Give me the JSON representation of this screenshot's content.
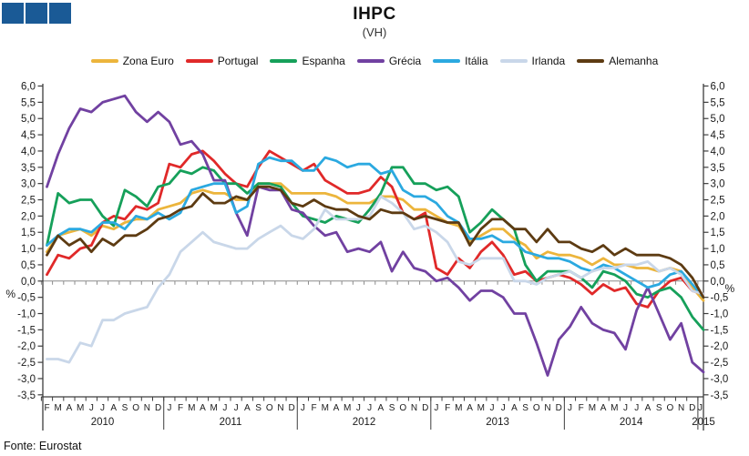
{
  "page": {
    "source": "Fonte: Eurostat"
  },
  "logo": {
    "color": "#1A5A96",
    "squares": 3
  },
  "chart_data": {
    "type": "line",
    "title": "IHPC",
    "subtitle": "(VH)",
    "unit": "%",
    "legend_position": "top",
    "grid": false,
    "ylim": [
      -3.5,
      6.0
    ],
    "y_ticks": [
      {
        "value": 6.0,
        "label": "6,0"
      },
      {
        "value": 5.5,
        "label": "5,5"
      },
      {
        "value": 5.0,
        "label": "5,0"
      },
      {
        "value": 4.5,
        "label": "4,5"
      },
      {
        "value": 4.0,
        "label": "4,0"
      },
      {
        "value": 3.5,
        "label": "3,5"
      },
      {
        "value": 3.0,
        "label": "3,0"
      },
      {
        "value": 2.5,
        "label": "2,5"
      },
      {
        "value": 2.0,
        "label": "2,0"
      },
      {
        "value": 1.5,
        "label": "1,5"
      },
      {
        "value": 1.0,
        "label": "1,0"
      },
      {
        "value": 0.5,
        "label": "0,5"
      },
      {
        "value": 0.0,
        "label": "0,0"
      },
      {
        "value": -0.5,
        "label": "-0,5"
      },
      {
        "value": -1.0,
        "label": "-1,0"
      },
      {
        "value": -1.5,
        "label": "-1,5"
      },
      {
        "value": -2.0,
        "label": "-2,0"
      },
      {
        "value": -2.5,
        "label": "-2,5"
      },
      {
        "value": -3.0,
        "label": "-3,0"
      },
      {
        "value": -3.5,
        "label": "-3,5"
      }
    ],
    "x_months": [
      "F",
      "M",
      "A",
      "M",
      "J",
      "J",
      "A",
      "S",
      "O",
      "N",
      "D",
      "J",
      "F",
      "M",
      "A",
      "M",
      "J",
      "J",
      "A",
      "S",
      "O",
      "N",
      "D",
      "J",
      "F",
      "M",
      "A",
      "M",
      "J",
      "J",
      "A",
      "S",
      "O",
      "N",
      "D",
      "J",
      "F",
      "M",
      "A",
      "M",
      "J",
      "J",
      "A",
      "S",
      "O",
      "N",
      "D",
      "J",
      "F",
      "M",
      "A",
      "M",
      "J",
      "J",
      "A",
      "S",
      "O",
      "N",
      "D",
      "J"
    ],
    "years": [
      {
        "label": "2010",
        "from": 0,
        "to": 10
      },
      {
        "label": "2011",
        "from": 11,
        "to": 22
      },
      {
        "label": "2012",
        "from": 23,
        "to": 34
      },
      {
        "label": "2013",
        "from": 35,
        "to": 46
      },
      {
        "label": "2014",
        "from": 47,
        "to": 58
      },
      {
        "label": "2015",
        "from": 59,
        "to": 59
      }
    ],
    "series": [
      {
        "name": "Zona Euro",
        "color": "#ECB53C",
        "values": [
          0.9,
          1.4,
          1.5,
          1.6,
          1.4,
          1.7,
          1.6,
          1.8,
          1.9,
          1.9,
          2.2,
          2.3,
          2.4,
          2.7,
          2.8,
          2.7,
          2.7,
          2.5,
          2.5,
          3.0,
          3.0,
          3.0,
          2.7,
          2.7,
          2.7,
          2.7,
          2.6,
          2.4,
          2.4,
          2.4,
          2.6,
          2.6,
          2.5,
          2.2,
          2.2,
          2.0,
          1.8,
          1.7,
          1.2,
          1.4,
          1.6,
          1.6,
          1.3,
          1.1,
          0.7,
          0.9,
          0.8,
          0.8,
          0.7,
          0.5,
          0.7,
          0.5,
          0.5,
          0.4,
          0.4,
          0.3,
          0.4,
          0.3,
          -0.2,
          -0.6
        ]
      },
      {
        "name": "Portugal",
        "color": "#E02929",
        "values": [
          0.2,
          0.8,
          0.7,
          1.0,
          1.1,
          1.8,
          2.0,
          1.9,
          2.3,
          2.2,
          2.4,
          3.6,
          3.5,
          3.9,
          4.0,
          3.7,
          3.3,
          3.0,
          2.9,
          3.5,
          4.0,
          3.8,
          3.6,
          3.4,
          3.6,
          3.1,
          2.9,
          2.7,
          2.7,
          2.8,
          3.2,
          2.9,
          2.1,
          1.9,
          2.1,
          0.4,
          0.2,
          0.7,
          0.4,
          0.9,
          1.2,
          0.8,
          0.2,
          0.3,
          0.0,
          0.1,
          0.2,
          0.1,
          -0.1,
          -0.4,
          -0.1,
          -0.3,
          -0.2,
          -0.7,
          -0.8,
          -0.3,
          0.0,
          0.1,
          -0.3,
          -0.4
        ]
      },
      {
        "name": "Espanha",
        "color": "#16A05A",
        "values": [
          1.1,
          2.7,
          2.4,
          2.5,
          2.5,
          2.0,
          1.7,
          2.8,
          2.6,
          2.3,
          2.9,
          3.0,
          3.4,
          3.3,
          3.5,
          3.4,
          3.0,
          3.0,
          2.7,
          3.0,
          3.0,
          2.9,
          2.4,
          2.0,
          1.9,
          1.8,
          2.0,
          1.9,
          1.8,
          2.2,
          2.7,
          3.5,
          3.5,
          3.0,
          3.0,
          2.8,
          2.9,
          2.6,
          1.5,
          1.8,
          2.2,
          1.9,
          1.6,
          0.5,
          0.0,
          0.3,
          0.3,
          0.3,
          0.1,
          -0.2,
          0.3,
          0.2,
          0.0,
          -0.4,
          -0.5,
          -0.3,
          -0.2,
          -0.5,
          -1.1,
          -1.5
        ]
      },
      {
        "name": "Grécia",
        "color": "#7141A1",
        "values": [
          2.9,
          3.9,
          4.7,
          5.3,
          5.2,
          5.5,
          5.6,
          5.7,
          5.2,
          4.9,
          5.2,
          4.9,
          4.2,
          4.3,
          3.9,
          3.1,
          3.1,
          2.1,
          1.4,
          2.9,
          2.8,
          2.8,
          2.2,
          2.1,
          1.7,
          1.4,
          1.5,
          0.9,
          1.0,
          0.9,
          1.2,
          0.3,
          0.9,
          0.4,
          0.3,
          0.0,
          0.1,
          -0.2,
          -0.6,
          -0.3,
          -0.3,
          -0.5,
          -1.0,
          -1.0,
          -1.9,
          -2.9,
          -1.8,
          -1.4,
          -0.8,
          -1.3,
          -1.5,
          -1.6,
          -2.1,
          -0.9,
          -0.2,
          -1.0,
          -1.8,
          -1.3,
          -2.5,
          -2.8
        ]
      },
      {
        "name": "Itália",
        "color": "#2BA9E0",
        "values": [
          1.1,
          1.4,
          1.6,
          1.6,
          1.5,
          1.8,
          1.8,
          1.6,
          2.0,
          1.9,
          2.1,
          1.9,
          2.1,
          2.8,
          2.9,
          3.0,
          3.0,
          2.1,
          2.3,
          3.6,
          3.8,
          3.7,
          3.7,
          3.4,
          3.4,
          3.8,
          3.7,
          3.5,
          3.6,
          3.6,
          3.3,
          3.4,
          2.8,
          2.6,
          2.6,
          2.4,
          2.0,
          1.8,
          1.3,
          1.3,
          1.4,
          1.2,
          1.2,
          0.9,
          0.8,
          0.7,
          0.7,
          0.6,
          0.4,
          0.3,
          0.5,
          0.4,
          0.2,
          0.0,
          -0.2,
          -0.1,
          0.2,
          0.3,
          -0.1,
          -0.5
        ]
      },
      {
        "name": "Irlanda",
        "color": "#C9D7E9",
        "values": [
          -2.4,
          -2.4,
          -2.5,
          -1.9,
          -2.0,
          -1.2,
          -1.2,
          -1.0,
          -0.9,
          -0.8,
          -0.2,
          0.2,
          0.9,
          1.2,
          1.5,
          1.2,
          1.1,
          1.0,
          1.0,
          1.3,
          1.5,
          1.7,
          1.4,
          1.3,
          1.6,
          2.2,
          1.9,
          1.9,
          1.9,
          2.0,
          2.6,
          2.4,
          2.1,
          1.6,
          1.7,
          1.5,
          1.2,
          0.6,
          0.5,
          0.7,
          0.7,
          0.7,
          0.0,
          0.0,
          -0.1,
          0.1,
          0.2,
          0.3,
          0.1,
          0.3,
          0.4,
          0.4,
          0.5,
          0.5,
          0.6,
          0.3,
          0.4,
          0.2,
          -0.3,
          -0.4
        ]
      },
      {
        "name": "Alemanha",
        "color": "#5D3B12",
        "values": [
          0.8,
          1.4,
          1.1,
          1.3,
          0.9,
          1.3,
          1.1,
          1.4,
          1.4,
          1.6,
          1.9,
          2.0,
          2.2,
          2.3,
          2.7,
          2.4,
          2.4,
          2.6,
          2.5,
          2.9,
          2.9,
          2.8,
          2.4,
          2.3,
          2.5,
          2.3,
          2.2,
          2.2,
          2.0,
          1.9,
          2.2,
          2.1,
          2.1,
          1.9,
          2.0,
          1.9,
          1.8,
          1.8,
          1.1,
          1.6,
          1.9,
          1.9,
          1.6,
          1.6,
          1.2,
          1.6,
          1.2,
          1.2,
          1.0,
          0.9,
          1.1,
          0.8,
          1.0,
          0.8,
          0.8,
          0.8,
          0.7,
          0.5,
          0.1,
          -0.5
        ]
      }
    ]
  }
}
